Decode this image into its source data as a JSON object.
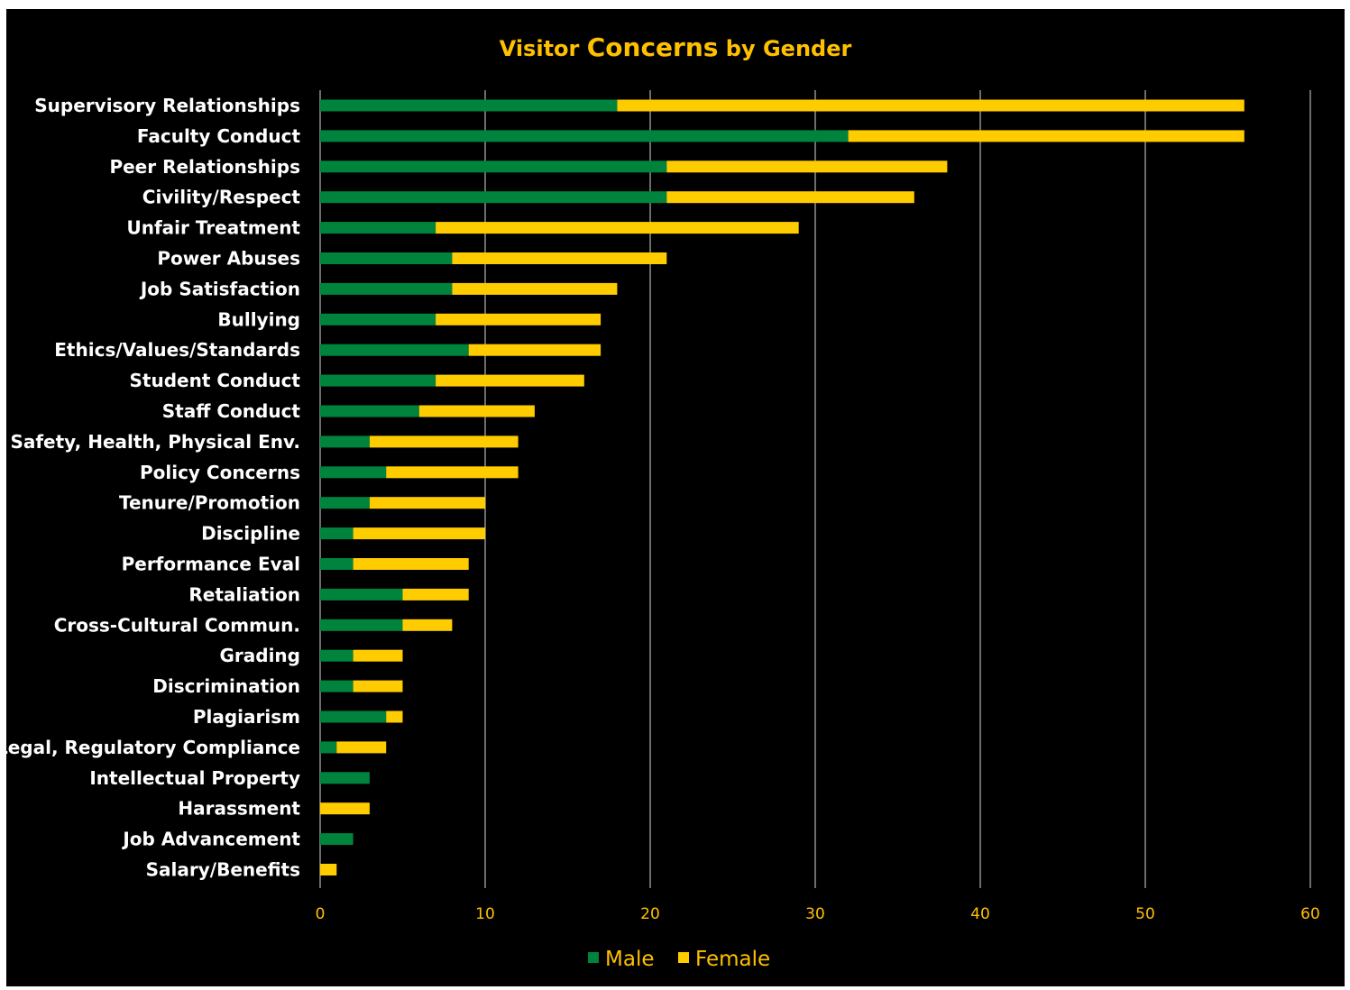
{
  "chart_data": {
    "type": "bar",
    "orientation": "horizontal",
    "stacked": true,
    "title": {
      "prefix": "Visitor ",
      "emphasis": "Concerns",
      "suffix": " by Gender"
    },
    "xlim": [
      0,
      60
    ],
    "x_ticks": [
      0,
      10,
      20,
      30,
      40,
      50,
      60
    ],
    "grid": true,
    "legend_position": "bottom",
    "background": "#000000",
    "text_color": "#FFC000",
    "label_color": "#FFFFFF",
    "grid_color": "#D9D9D9",
    "categories": [
      "Supervisory Relationships",
      "Faculty Conduct",
      "Peer Relationships",
      "Civility/Respect",
      "Unfair Treatment",
      "Power Abuses",
      "Job Satisfaction",
      "Bullying",
      "Ethics/Values/Standards",
      "Student Conduct",
      "Staff Conduct",
      "Safety, Health, Physical Env.",
      "Policy Concerns",
      "Tenure/Promotion",
      "Discipline",
      "Performance Eval",
      "Retaliation",
      "Cross-Cultural Commun.",
      "Grading",
      "Discrimination",
      "Plagiarism",
      "Legal, Regulatory Compliance",
      "Intellectual Property",
      "Harassment",
      "Job Advancement",
      "Salary/Benefits"
    ],
    "series": [
      {
        "name": "Male",
        "color": "#00843D",
        "values": [
          18,
          32,
          21,
          21,
          7,
          8,
          8,
          7,
          9,
          7,
          6,
          3,
          4,
          3,
          2,
          2,
          5,
          5,
          2,
          2,
          4,
          1,
          3,
          0,
          2,
          0
        ]
      },
      {
        "name": "Female",
        "color": "#FFCC00",
        "values": [
          38,
          24,
          17,
          15,
          22,
          13,
          10,
          10,
          8,
          9,
          7,
          9,
          8,
          7,
          8,
          7,
          4,
          3,
          3,
          3,
          1,
          3,
          0,
          3,
          0,
          1
        ]
      }
    ]
  }
}
